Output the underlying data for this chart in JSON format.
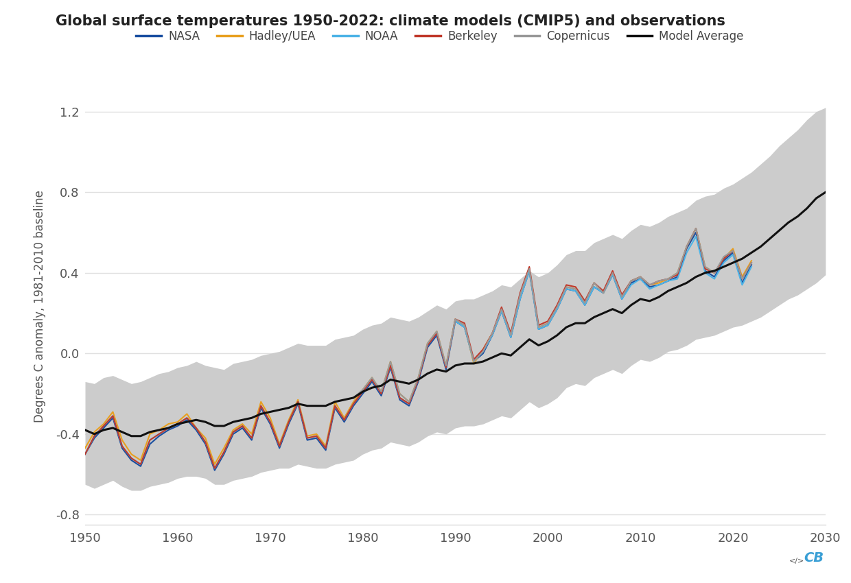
{
  "title": "Global surface temperatures 1950-2022: climate models (CMIP5) and observations",
  "ylabel": "Degrees C anomaly, 1981-2010 baseline",
  "xlim": [
    1950,
    2030
  ],
  "ylim": [
    -0.85,
    1.32
  ],
  "yticks": [
    -0.8,
    -0.4,
    0.0,
    0.4,
    0.8,
    1.2
  ],
  "xticks": [
    1950,
    1960,
    1970,
    1980,
    1990,
    2000,
    2010,
    2020,
    2030
  ],
  "years_obs": [
    1950,
    1951,
    1952,
    1953,
    1954,
    1955,
    1956,
    1957,
    1958,
    1959,
    1960,
    1961,
    1962,
    1963,
    1964,
    1965,
    1966,
    1967,
    1968,
    1969,
    1970,
    1971,
    1972,
    1973,
    1974,
    1975,
    1976,
    1977,
    1978,
    1979,
    1980,
    1981,
    1982,
    1983,
    1984,
    1985,
    1986,
    1987,
    1988,
    1989,
    1990,
    1991,
    1992,
    1993,
    1994,
    1995,
    1996,
    1997,
    1998,
    1999,
    2000,
    2001,
    2002,
    2003,
    2004,
    2005,
    2006,
    2007,
    2008,
    2009,
    2010,
    2011,
    2012,
    2013,
    2014,
    2015,
    2016,
    2017,
    2018,
    2019,
    2020,
    2021,
    2022
  ],
  "nasa": [
    -0.5,
    -0.42,
    -0.37,
    -0.32,
    -0.47,
    -0.53,
    -0.56,
    -0.45,
    -0.41,
    -0.38,
    -0.36,
    -0.33,
    -0.38,
    -0.45,
    -0.58,
    -0.5,
    -0.4,
    -0.37,
    -0.43,
    -0.27,
    -0.35,
    -0.47,
    -0.35,
    -0.25,
    -0.43,
    -0.42,
    -0.48,
    -0.27,
    -0.34,
    -0.26,
    -0.2,
    -0.14,
    -0.21,
    -0.07,
    -0.23,
    -0.26,
    -0.14,
    0.03,
    0.09,
    -0.08,
    0.16,
    0.13,
    -0.04,
    0.0,
    0.09,
    0.21,
    0.08,
    0.27,
    0.41,
    0.12,
    0.14,
    0.22,
    0.32,
    0.31,
    0.24,
    0.33,
    0.3,
    0.39,
    0.27,
    0.35,
    0.37,
    0.33,
    0.34,
    0.36,
    0.38,
    0.52,
    0.6,
    0.41,
    0.38,
    0.46,
    0.5,
    0.35,
    0.44
  ],
  "hadley": [
    -0.47,
    -0.39,
    -0.35,
    -0.29,
    -0.43,
    -0.5,
    -0.53,
    -0.4,
    -0.38,
    -0.35,
    -0.34,
    -0.3,
    -0.37,
    -0.42,
    -0.55,
    -0.47,
    -0.38,
    -0.35,
    -0.4,
    -0.24,
    -0.32,
    -0.45,
    -0.33,
    -0.23,
    -0.41,
    -0.4,
    -0.46,
    -0.24,
    -0.32,
    -0.24,
    -0.18,
    -0.12,
    -0.19,
    -0.04,
    -0.2,
    -0.24,
    -0.12,
    0.05,
    0.11,
    -0.06,
    0.17,
    0.14,
    -0.05,
    0.02,
    0.1,
    0.22,
    0.09,
    0.28,
    0.42,
    0.13,
    0.15,
    0.23,
    0.33,
    0.32,
    0.25,
    0.35,
    0.3,
    0.4,
    0.28,
    0.36,
    0.38,
    0.34,
    0.35,
    0.37,
    0.4,
    0.53,
    0.62,
    0.43,
    0.4,
    0.47,
    0.52,
    0.38,
    0.46
  ],
  "noaa": [
    -0.5,
    -0.41,
    -0.36,
    -0.31,
    -0.46,
    -0.52,
    -0.55,
    -0.43,
    -0.4,
    -0.37,
    -0.35,
    -0.32,
    -0.37,
    -0.44,
    -0.57,
    -0.49,
    -0.39,
    -0.36,
    -0.42,
    -0.26,
    -0.34,
    -0.46,
    -0.34,
    -0.24,
    -0.42,
    -0.41,
    -0.47,
    -0.26,
    -0.33,
    -0.25,
    -0.19,
    -0.13,
    -0.2,
    -0.06,
    -0.22,
    -0.25,
    -0.13,
    0.04,
    0.1,
    -0.07,
    0.16,
    0.13,
    -0.04,
    0.01,
    0.09,
    0.21,
    0.08,
    0.27,
    0.41,
    0.12,
    0.14,
    0.22,
    0.32,
    0.31,
    0.24,
    0.33,
    0.3,
    0.39,
    0.27,
    0.34,
    0.37,
    0.32,
    0.34,
    0.36,
    0.37,
    0.5,
    0.58,
    0.4,
    0.37,
    0.45,
    0.49,
    0.34,
    0.43
  ],
  "berkeley": [
    -0.5,
    -0.41,
    -0.36,
    -0.31,
    -0.46,
    -0.52,
    -0.55,
    -0.43,
    -0.4,
    -0.37,
    -0.35,
    -0.32,
    -0.37,
    -0.44,
    -0.57,
    -0.49,
    -0.39,
    -0.36,
    -0.42,
    -0.26,
    -0.34,
    -0.46,
    -0.34,
    -0.24,
    -0.42,
    -0.41,
    -0.47,
    -0.26,
    -0.33,
    -0.25,
    -0.19,
    -0.13,
    -0.2,
    -0.06,
    -0.22,
    -0.25,
    -0.13,
    0.04,
    0.1,
    -0.07,
    0.17,
    0.15,
    -0.03,
    0.02,
    0.1,
    0.23,
    0.1,
    0.3,
    0.43,
    0.14,
    0.16,
    0.24,
    0.34,
    0.33,
    0.26,
    0.35,
    0.31,
    0.41,
    0.29,
    0.36,
    0.38,
    0.34,
    0.36,
    0.37,
    0.39,
    0.53,
    0.62,
    0.42,
    0.4,
    0.47,
    0.51,
    0.37,
    0.45
  ],
  "copernicus_years": [
    1979,
    1980,
    1981,
    1982,
    1983,
    1984,
    1985,
    1986,
    1987,
    1988,
    1989,
    1990,
    1991,
    1992,
    1993,
    1994,
    1995,
    1996,
    1997,
    1998,
    1999,
    2000,
    2001,
    2002,
    2003,
    2004,
    2005,
    2006,
    2007,
    2008,
    2009,
    2010,
    2011,
    2012,
    2013,
    2014,
    2015,
    2016,
    2017,
    2018,
    2019,
    2020,
    2021,
    2022
  ],
  "copernicus_vals": [
    -0.22,
    -0.18,
    -0.12,
    -0.19,
    -0.04,
    -0.2,
    -0.24,
    -0.12,
    0.05,
    0.11,
    -0.06,
    0.17,
    0.14,
    -0.04,
    0.01,
    0.1,
    0.22,
    0.09,
    0.29,
    0.42,
    0.13,
    0.15,
    0.23,
    0.33,
    0.32,
    0.25,
    0.35,
    0.3,
    0.4,
    0.28,
    0.36,
    0.38,
    0.34,
    0.36,
    0.37,
    0.4,
    0.53,
    0.62,
    0.43,
    0.4,
    0.48,
    0.51,
    0.37,
    0.45
  ],
  "years_model": [
    1950,
    1951,
    1952,
    1953,
    1954,
    1955,
    1956,
    1957,
    1958,
    1959,
    1960,
    1961,
    1962,
    1963,
    1964,
    1965,
    1966,
    1967,
    1968,
    1969,
    1970,
    1971,
    1972,
    1973,
    1974,
    1975,
    1976,
    1977,
    1978,
    1979,
    1980,
    1981,
    1982,
    1983,
    1984,
    1985,
    1986,
    1987,
    1988,
    1989,
    1990,
    1991,
    1992,
    1993,
    1994,
    1995,
    1996,
    1997,
    1998,
    1999,
    2000,
    2001,
    2002,
    2003,
    2004,
    2005,
    2006,
    2007,
    2008,
    2009,
    2010,
    2011,
    2012,
    2013,
    2014,
    2015,
    2016,
    2017,
    2018,
    2019,
    2020,
    2021,
    2022,
    2023,
    2024,
    2025,
    2026,
    2027,
    2028,
    2029,
    2030
  ],
  "model_mean": [
    -0.38,
    -0.4,
    -0.38,
    -0.37,
    -0.39,
    -0.41,
    -0.41,
    -0.39,
    -0.38,
    -0.37,
    -0.35,
    -0.34,
    -0.33,
    -0.34,
    -0.36,
    -0.36,
    -0.34,
    -0.33,
    -0.32,
    -0.3,
    -0.29,
    -0.28,
    -0.27,
    -0.25,
    -0.26,
    -0.26,
    -0.26,
    -0.24,
    -0.23,
    -0.22,
    -0.19,
    -0.17,
    -0.16,
    -0.13,
    -0.14,
    -0.15,
    -0.13,
    -0.1,
    -0.08,
    -0.09,
    -0.06,
    -0.05,
    -0.05,
    -0.04,
    -0.02,
    0.0,
    -0.01,
    0.03,
    0.07,
    0.04,
    0.06,
    0.09,
    0.13,
    0.15,
    0.15,
    0.18,
    0.2,
    0.22,
    0.2,
    0.24,
    0.27,
    0.26,
    0.28,
    0.31,
    0.33,
    0.35,
    0.38,
    0.4,
    0.41,
    0.43,
    0.45,
    0.47,
    0.5,
    0.53,
    0.57,
    0.61,
    0.65,
    0.68,
    0.72,
    0.77,
    0.8
  ],
  "model_upper": [
    -0.14,
    -0.15,
    -0.12,
    -0.11,
    -0.13,
    -0.15,
    -0.14,
    -0.12,
    -0.1,
    -0.09,
    -0.07,
    -0.06,
    -0.04,
    -0.06,
    -0.07,
    -0.08,
    -0.05,
    -0.04,
    -0.03,
    -0.01,
    0.0,
    0.01,
    0.03,
    0.05,
    0.04,
    0.04,
    0.04,
    0.07,
    0.08,
    0.09,
    0.12,
    0.14,
    0.15,
    0.18,
    0.17,
    0.16,
    0.18,
    0.21,
    0.24,
    0.22,
    0.26,
    0.27,
    0.27,
    0.29,
    0.31,
    0.34,
    0.33,
    0.37,
    0.41,
    0.38,
    0.4,
    0.44,
    0.49,
    0.51,
    0.51,
    0.55,
    0.57,
    0.59,
    0.57,
    0.61,
    0.64,
    0.63,
    0.65,
    0.68,
    0.7,
    0.72,
    0.76,
    0.78,
    0.79,
    0.82,
    0.84,
    0.87,
    0.9,
    0.94,
    0.98,
    1.03,
    1.07,
    1.11,
    1.16,
    1.2,
    1.22
  ],
  "model_lower": [
    -0.65,
    -0.67,
    -0.65,
    -0.63,
    -0.66,
    -0.68,
    -0.68,
    -0.66,
    -0.65,
    -0.64,
    -0.62,
    -0.61,
    -0.61,
    -0.62,
    -0.65,
    -0.65,
    -0.63,
    -0.62,
    -0.61,
    -0.59,
    -0.58,
    -0.57,
    -0.57,
    -0.55,
    -0.56,
    -0.57,
    -0.57,
    -0.55,
    -0.54,
    -0.53,
    -0.5,
    -0.48,
    -0.47,
    -0.44,
    -0.45,
    -0.46,
    -0.44,
    -0.41,
    -0.39,
    -0.4,
    -0.37,
    -0.36,
    -0.36,
    -0.35,
    -0.33,
    -0.31,
    -0.32,
    -0.28,
    -0.24,
    -0.27,
    -0.25,
    -0.22,
    -0.17,
    -0.15,
    -0.16,
    -0.12,
    -0.1,
    -0.08,
    -0.1,
    -0.06,
    -0.03,
    -0.04,
    -0.02,
    0.01,
    0.02,
    0.04,
    0.07,
    0.08,
    0.09,
    0.11,
    0.13,
    0.14,
    0.16,
    0.18,
    0.21,
    0.24,
    0.27,
    0.29,
    0.32,
    0.35,
    0.39
  ],
  "color_nasa": "#1a4fa0",
  "color_hadley": "#e8a020",
  "color_noaa": "#4db3e6",
  "color_berkeley": "#c0392b",
  "color_copernicus": "#999999",
  "color_model_mean": "#111111",
  "color_model_band": "#cccccc",
  "bg_color": "#ffffff",
  "grid_color": "#e0e0e0"
}
